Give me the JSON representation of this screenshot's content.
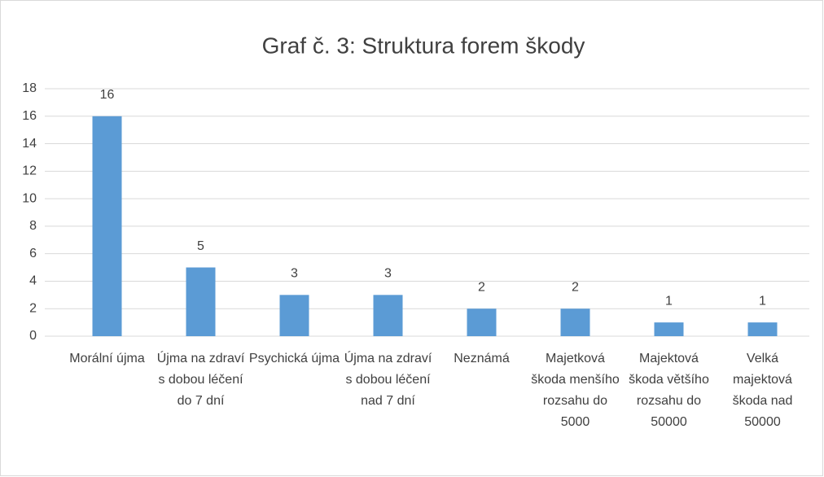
{
  "chart_data": {
    "type": "bar",
    "title": "Graf č. 3: Struktura forem škody",
    "categories": [
      "Morální újma",
      "Újma na zdraví s dobou léčení do 7 dní",
      "Psychická újma",
      "Újma na zdraví s dobou léčení nad 7 dní",
      "Neznámá",
      "Majetková škoda menšího rozsahu do 5000",
      "Majektová škoda většího rozsahu do 50000",
      "Velká majektová škoda nad 50000"
    ],
    "values": [
      16,
      5,
      3,
      3,
      2,
      2,
      1,
      1
    ],
    "color": "#5b9bd5",
    "ylim": [
      0,
      18
    ],
    "yticks": [
      0,
      2,
      4,
      6,
      8,
      10,
      12,
      14,
      16,
      18
    ],
    "grid": true
  }
}
